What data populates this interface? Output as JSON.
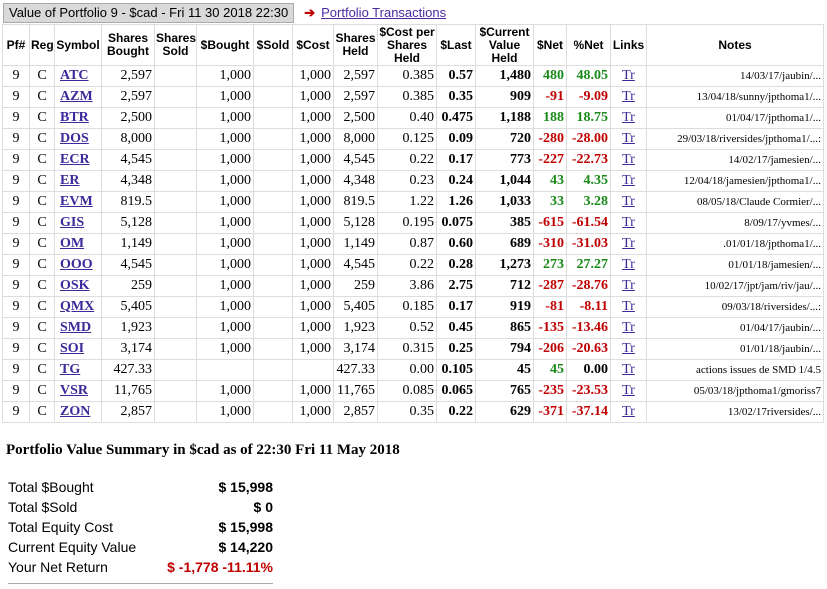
{
  "header": {
    "title": "Value of Portfolio 9 - $cad - Fri 11 30 2018 22:30",
    "link": "Portfolio Transactions"
  },
  "table": {
    "columns": [
      "Pf#",
      "Reg",
      "Symbol",
      "Shares Bought",
      "Shares Sold",
      "$Bought",
      "$Sold",
      "$Cost",
      "Shares Held",
      "$Cost per Shares Held",
      "$Last",
      "$Current Value Held",
      "$Net",
      "%Net",
      "Links",
      "Notes"
    ],
    "rows": [
      [
        "9",
        "C",
        "ATC",
        "2,597",
        null,
        "1,000",
        null,
        "1,000",
        "2,597",
        "0.385",
        "0.57",
        "1,480",
        "480",
        "48.05",
        "Tr",
        "14/03/17/jaubin/..."
      ],
      [
        "9",
        "C",
        "AZM",
        "2,597",
        null,
        "1,000",
        null,
        "1,000",
        "2,597",
        "0.385",
        "0.35",
        "909",
        "-91",
        "-9.09",
        "Tr",
        "13/04/18/sunny/jpthoma1/..."
      ],
      [
        "9",
        "C",
        "BTR",
        "2,500",
        null,
        "1,000",
        null,
        "1,000",
        "2,500",
        "0.40",
        "0.475",
        "1,188",
        "188",
        "18.75",
        "Tr",
        "01/04/17/jpthoma1/..."
      ],
      [
        "9",
        "C",
        "DOS",
        "8,000",
        null,
        "1,000",
        null,
        "1,000",
        "8,000",
        "0.125",
        "0.09",
        "720",
        "-280",
        "-28.00",
        "Tr",
        "29/03/18/riversides/jpthoma1/...:"
      ],
      [
        "9",
        "C",
        "ECR",
        "4,545",
        null,
        "1,000",
        null,
        "1,000",
        "4,545",
        "0.22",
        "0.17",
        "773",
        "-227",
        "-22.73",
        "Tr",
        "14/02/17/jamesien/..."
      ],
      [
        "9",
        "C",
        "ER",
        "4,348",
        null,
        "1,000",
        null,
        "1,000",
        "4,348",
        "0.23",
        "0.24",
        "1,044",
        "43",
        "4.35",
        "Tr",
        "12/04/18/jamesien/jpthoma1/..."
      ],
      [
        "9",
        "C",
        "EVM",
        "819.5",
        null,
        "1,000",
        null,
        "1,000",
        "819.5",
        "1.22",
        "1.26",
        "1,033",
        "33",
        "3.28",
        "Tr",
        "08/05/18/Claude Cormier/..."
      ],
      [
        "9",
        "C",
        "GIS",
        "5,128",
        null,
        "1,000",
        null,
        "1,000",
        "5,128",
        "0.195",
        "0.075",
        "385",
        "-615",
        "-61.54",
        "Tr",
        "8/09/17/yvmes/..."
      ],
      [
        "9",
        "C",
        "OM",
        "1,149",
        null,
        "1,000",
        null,
        "1,000",
        "1,149",
        "0.87",
        "0.60",
        "689",
        "-310",
        "-31.03",
        "Tr",
        ".01/01/18/jpthoma1/..."
      ],
      [
        "9",
        "C",
        "OOO",
        "4,545",
        null,
        "1,000",
        null,
        "1,000",
        "4,545",
        "0.22",
        "0.28",
        "1,273",
        "273",
        "27.27",
        "Tr",
        "01/01/18/jamesien/..."
      ],
      [
        "9",
        "C",
        "OSK",
        "259",
        null,
        "1,000",
        null,
        "1,000",
        "259",
        "3.86",
        "2.75",
        "712",
        "-287",
        "-28.76",
        "Tr",
        "10/02/17/jpt/jam/riv/jau/..."
      ],
      [
        "9",
        "C",
        "QMX",
        "5,405",
        null,
        "1,000",
        null,
        "1,000",
        "5,405",
        "0.185",
        "0.17",
        "919",
        "-81",
        "-8.11",
        "Tr",
        "09/03/18/riversides/...:"
      ],
      [
        "9",
        "C",
        "SMD",
        "1,923",
        null,
        "1,000",
        null,
        "1,000",
        "1,923",
        "0.52",
        "0.45",
        "865",
        "-135",
        "-13.46",
        "Tr",
        "01/04/17/jaubin/..."
      ],
      [
        "9",
        "C",
        "SOI",
        "3,174",
        null,
        "1,000",
        null,
        "1,000",
        "3,174",
        "0.315",
        "0.25",
        "794",
        "-206",
        "-20.63",
        "Tr",
        "01/01/18/jaubin/..."
      ],
      [
        "9",
        "C",
        "TG",
        "427.33",
        null,
        null,
        null,
        null,
        "427.33",
        "0.00",
        "0.105",
        "45",
        "45",
        "0.00",
        "Tr",
        "actions issues de SMD 1/4.5"
      ],
      [
        "9",
        "C",
        "VSR",
        "11,765",
        null,
        "1,000",
        null,
        "1,000",
        "11,765",
        "0.085",
        "0.065",
        "765",
        "-235",
        "-23.53",
        "Tr",
        "05/03/18/jpthoma1/gmoriss7"
      ],
      [
        "9",
        "C",
        "ZON",
        "2,857",
        null,
        "1,000",
        null,
        "1,000",
        "2,857",
        "0.35",
        "0.22",
        "629",
        "-371",
        "-37.14",
        "Tr",
        "13/02/17riversides/..."
      ]
    ]
  },
  "summary": {
    "title": "Portfolio Value Summary in $cad as of 22:30 Fri 11 May 2018",
    "rows": [
      {
        "label": "Total $Bought",
        "value": "$ 15,998"
      },
      {
        "label": "Total $Sold",
        "value": "$ 0"
      },
      {
        "label": "Total Equity Cost",
        "value": "$ 15,998"
      },
      {
        "label": "Current Equity Value",
        "value": "$ 14,220"
      },
      {
        "label": "Your Net Return",
        "value": "$ -1,778",
        "percent": "-11.11%"
      }
    ]
  }
}
